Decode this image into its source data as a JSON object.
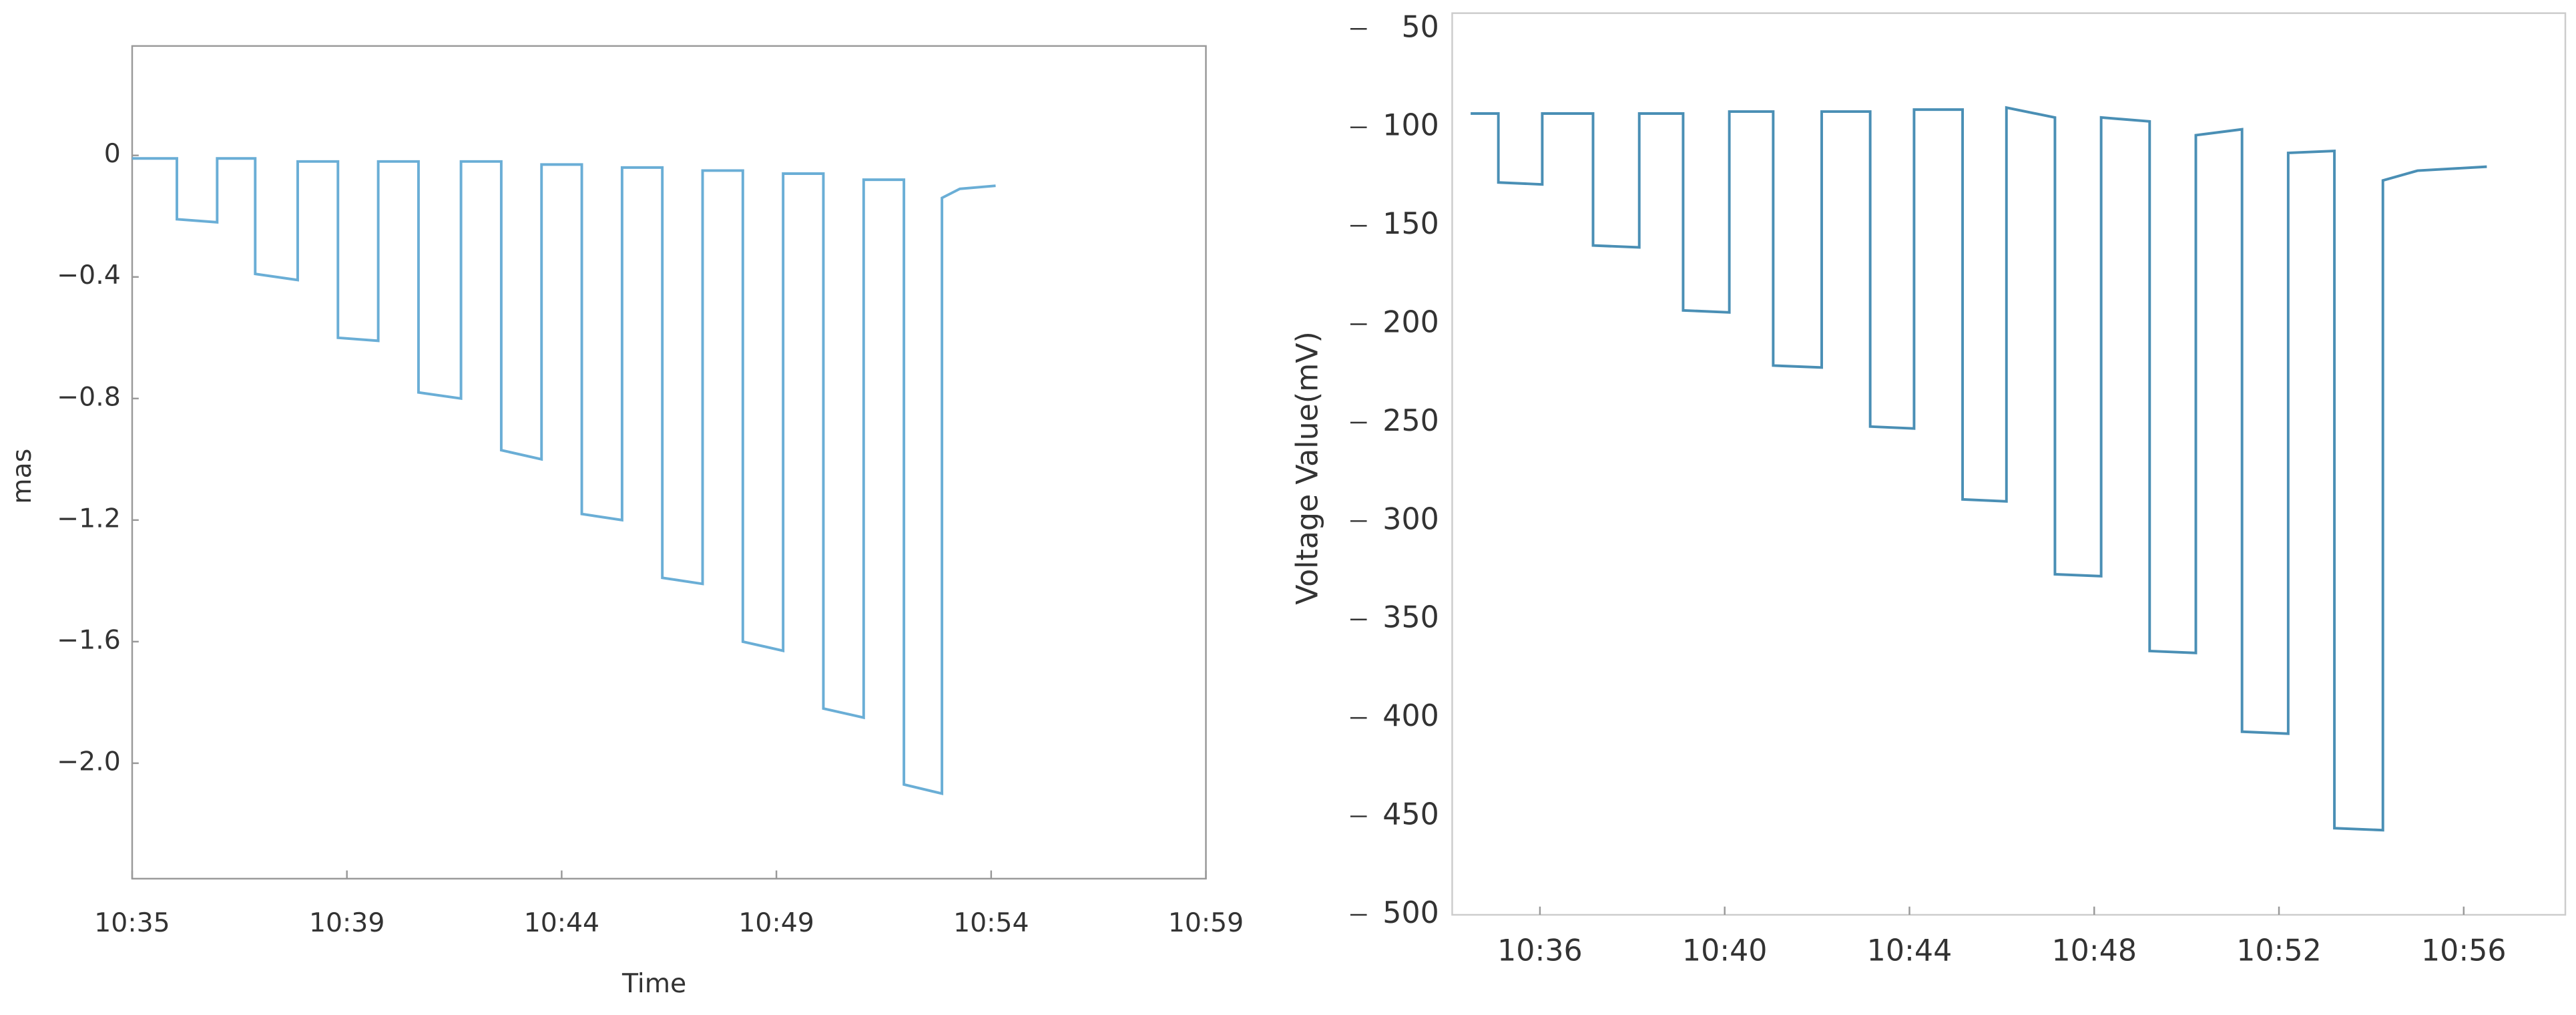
{
  "chart_data": [
    {
      "type": "line",
      "x_label": "Time",
      "y_label": "mas",
      "color": "#6aaed6",
      "x": [
        635,
        636,
        636,
        636.9,
        636.9,
        637.75,
        637.75,
        638.7,
        638.7,
        639.6,
        639.6,
        640.5,
        640.5,
        641.4,
        641.4,
        642.35,
        642.35,
        643.25,
        643.25,
        644.15,
        644.15,
        645.05,
        645.05,
        645.95,
        645.95,
        646.85,
        646.85,
        647.75,
        647.75,
        648.65,
        648.65,
        649.55,
        649.55,
        650.45,
        650.45,
        651.35,
        651.35,
        652.25,
        652.25,
        653.1,
        653.1,
        653.5,
        654.3
      ],
      "values": [
        -0.01,
        -0.01,
        -0.21,
        -0.22,
        -0.01,
        -0.01,
        -0.39,
        -0.41,
        -0.02,
        -0.02,
        -0.6,
        -0.61,
        -0.02,
        -0.02,
        -0.78,
        -0.8,
        -0.02,
        -0.02,
        -0.97,
        -1.0,
        -0.03,
        -0.03,
        -1.18,
        -1.2,
        -0.04,
        -0.04,
        -1.39,
        -1.41,
        -0.05,
        -0.05,
        -1.6,
        -1.63,
        -0.06,
        -0.06,
        -1.82,
        -1.85,
        -0.08,
        -0.08,
        -2.07,
        -2.1,
        -0.14,
        -0.11,
        -0.1
      ],
      "xlim": [
        635,
        659
      ],
      "xticks": [
        {
          "value": 635,
          "label": "10:35"
        },
        {
          "value": 639.8,
          "label": "10:39"
        },
        {
          "value": 644.6,
          "label": "10:44"
        },
        {
          "value": 649.4,
          "label": "10:49"
        },
        {
          "value": 654.2,
          "label": "10:54"
        },
        {
          "value": 659,
          "label": "10:59"
        }
      ],
      "ylim": [
        -2.38,
        0.36
      ],
      "yticks": [
        0,
        {
          "value": -0.4,
          "label": "−0.4"
        },
        {
          "value": -0.8,
          "label": "−0.8"
        },
        {
          "value": -1.2,
          "label": "−1.2"
        },
        {
          "value": -1.6,
          "label": "−1.6"
        },
        {
          "value": -2.0,
          "label": "−2.0"
        }
      ]
    },
    {
      "type": "line",
      "y_label": "Voltage Value(mV)",
      "color": "#4a8fb5",
      "x": [
        634.5,
        635.1,
        635.1,
        636.05,
        636.05,
        637.15,
        637.15,
        638.15,
        638.15,
        639.1,
        639.1,
        640.1,
        640.1,
        641.05,
        641.05,
        642.1,
        642.1,
        643.15,
        643.15,
        644.1,
        644.1,
        645.15,
        645.15,
        646.1,
        646.1,
        647.15,
        647.15,
        648.15,
        648.15,
        649.2,
        649.2,
        650.2,
        650.2,
        651.2,
        651.2,
        652.2,
        652.2,
        653.2,
        653.2,
        654.25,
        654.25,
        655,
        656.5
      ],
      "values": [
        93,
        93,
        128,
        129,
        93,
        93,
        160,
        161,
        93,
        93,
        193,
        194,
        92,
        92,
        221,
        222,
        92,
        92,
        252,
        253,
        91,
        91,
        289,
        290,
        90,
        95,
        327,
        328,
        95,
        97,
        366,
        367,
        104,
        101,
        407,
        408,
        113,
        112,
        456,
        457,
        127,
        122,
        120
      ],
      "xlim": [
        634.1,
        658.2
      ],
      "xticks": [
        {
          "value": 636,
          "label": "10:36"
        },
        {
          "value": 640,
          "label": "10:40"
        },
        {
          "value": 644,
          "label": "10:44"
        },
        {
          "value": 648,
          "label": "10:48"
        },
        {
          "value": 652,
          "label": "10:52"
        },
        {
          "value": 656,
          "label": "10:56"
        }
      ],
      "ylim": [
        500,
        42
      ],
      "yticks": [
        50,
        100,
        150,
        200,
        250,
        300,
        350,
        400,
        450,
        500
      ]
    }
  ]
}
